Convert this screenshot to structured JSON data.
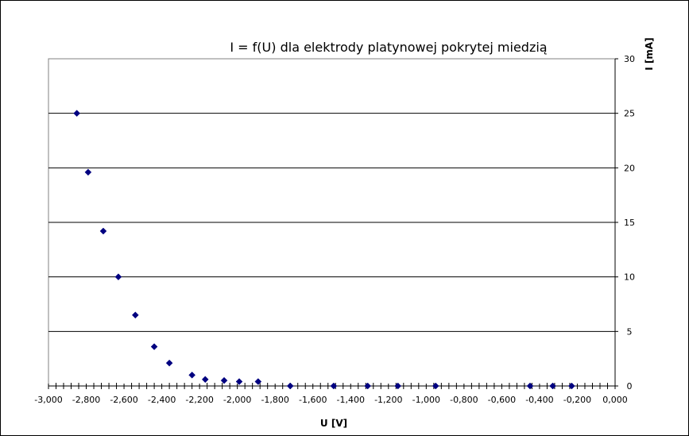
{
  "chart_data": {
    "type": "scatter",
    "title": "I = f(U) dla elektrody platynowej pokrytej miedzią",
    "xlabel": "U [V]",
    "ylabel": "I [mA]",
    "xlim": [
      -3.0,
      0.0
    ],
    "ylim": [
      0,
      30
    ],
    "x_ticks": [
      "-3,000",
      "-2,800",
      "-2,600",
      "-2,400",
      "-2,200",
      "-2,000",
      "-1,800",
      "-1,600",
      "-1,400",
      "-1,200",
      "-1,000",
      "-0,800",
      "-0,600",
      "-0,400",
      "-0,200",
      "0,000"
    ],
    "y_ticks": [
      "0",
      "5",
      "10",
      "15",
      "20",
      "25",
      "30"
    ],
    "y_axis_position": "right",
    "grid": "horizontal major",
    "marker_color": "#000080",
    "series": [
      {
        "marker": "diamond",
        "x": [
          -2.85,
          -2.79,
          -2.71,
          -2.63,
          -2.54,
          -2.44,
          -2.36,
          -2.24,
          -2.17,
          -2.07,
          -1.99,
          -1.89,
          -1.72,
          -1.49,
          -1.31,
          -1.15,
          -0.95,
          -0.45,
          -0.33,
          -0.23
        ],
        "y": [
          25.0,
          19.6,
          14.2,
          10.0,
          6.5,
          3.6,
          2.1,
          1.0,
          0.6,
          0.5,
          0.4,
          0.4,
          0.0,
          0.0,
          0.0,
          0.0,
          0.0,
          0.0,
          0.0,
          0.0
        ]
      }
    ]
  }
}
